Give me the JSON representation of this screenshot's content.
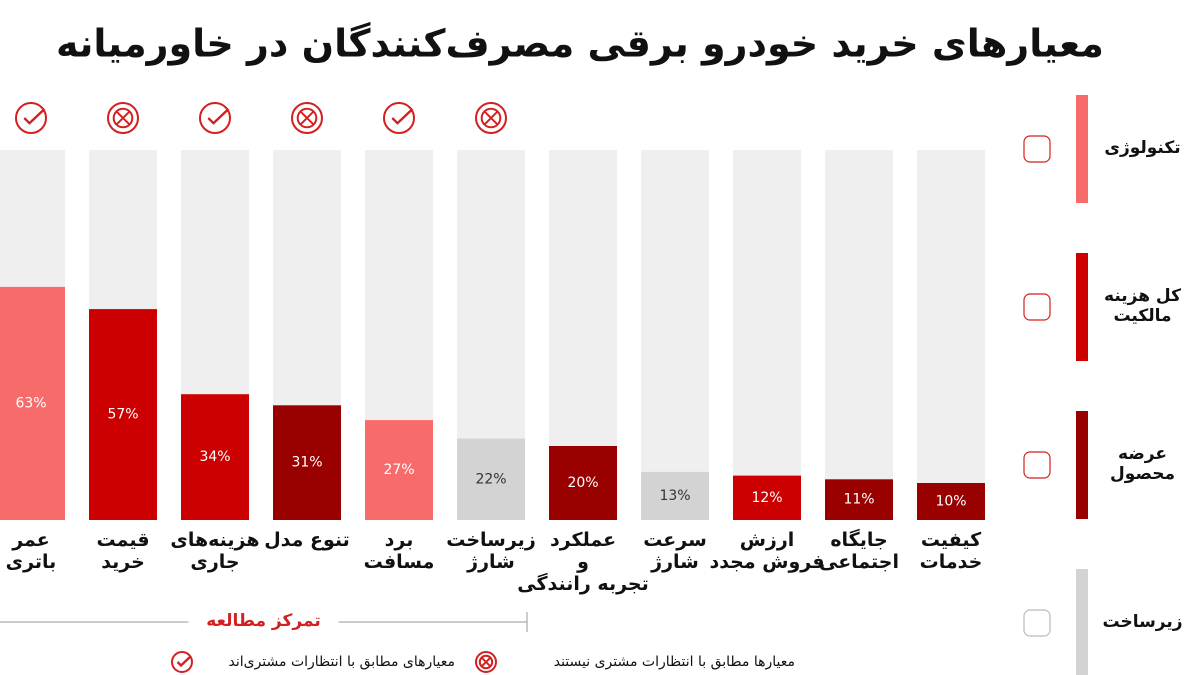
{
  "chart_data": {
    "type": "bar",
    "title": "معیارهای خرید خودرو برقی مصرف‌کنندگان در خاورمیانه",
    "categories": [
      "عمر\nباتری",
      "قیمت\nخرید",
      "هزینه‌های\nجاری",
      "تنوع مدل",
      "برد\nمسافت",
      "زیرساخت\nشارژ",
      "عملکرد\nو\nتجربه رانندگی",
      "سرعت\nشارژ",
      "ارزش\nفروش مجدد",
      "جایگاه\nاجتماعی",
      "کیفیت\nخدمات"
    ],
    "values": [
      63,
      57,
      34,
      31,
      27,
      22,
      20,
      13,
      12,
      11,
      10
    ],
    "value_labels": [
      "63%",
      "57%",
      "34%",
      "31%",
      "27%",
      "22%",
      "20%",
      "13%",
      "12%",
      "11%",
      "10%"
    ],
    "colors": [
      "#f76b6b",
      "#cc0000",
      "#cc0000",
      "#990000",
      "#f76b6b",
      "#d3d3d3",
      "#990000",
      "#d3d3d3",
      "#cc0000",
      "#990000",
      "#990000"
    ],
    "ylim": [
      0,
      100
    ],
    "icons": [
      "check",
      "cross",
      "check",
      "cross",
      "check",
      "cross"
    ],
    "bracket_label": "تمرکز مطالعه",
    "icon_legend": [
      {
        "icon": "check",
        "label": "معیارهای مطابق با انتظارات مشتری‌اند"
      },
      {
        "icon": "cross",
        "label": "معیارها مطابق با انتظارات مشتری نیستند"
      }
    ],
    "groups": [
      {
        "name": "تکنولوژی",
        "color": "#f76b6b"
      },
      {
        "name": "کل هزینه\nمالکیت",
        "color": "#cc0000"
      },
      {
        "name": "عرضه\nمحصول",
        "color": "#990000"
      },
      {
        "name": "زیرساخت",
        "color": "#d3d3d3"
      }
    ]
  }
}
